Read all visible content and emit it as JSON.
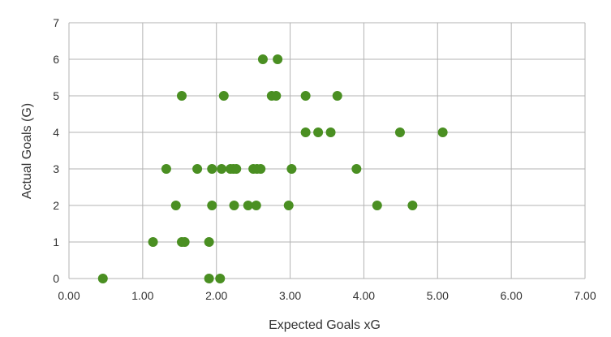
{
  "chart_data": {
    "type": "scatter",
    "title": "",
    "xlabel": "Expected Goals xG",
    "ylabel": "Actual Goals (G)",
    "xlim": [
      0,
      7
    ],
    "ylim": [
      0,
      7
    ],
    "x_ticks": [
      "0.00",
      "1.00",
      "2.00",
      "3.00",
      "4.00",
      "5.00",
      "6.00",
      "7.00"
    ],
    "y_ticks": [
      "0",
      "1",
      "2",
      "3",
      "4",
      "5",
      "6",
      "7"
    ],
    "grid": true,
    "legend": "none",
    "marker_color": "#4a8f22",
    "grid_color": "#b3b3b3",
    "series": [
      {
        "points": [
          [
            0.46,
            0
          ],
          [
            1.9,
            0
          ],
          [
            2.05,
            0
          ],
          [
            1.14,
            1
          ],
          [
            1.53,
            1
          ],
          [
            1.57,
            1
          ],
          [
            1.9,
            1
          ],
          [
            1.45,
            2
          ],
          [
            1.94,
            2
          ],
          [
            2.24,
            2
          ],
          [
            2.43,
            2
          ],
          [
            2.54,
            2
          ],
          [
            2.98,
            2
          ],
          [
            4.18,
            2
          ],
          [
            4.66,
            2
          ],
          [
            1.32,
            3
          ],
          [
            1.74,
            3
          ],
          [
            1.94,
            3
          ],
          [
            2.07,
            3
          ],
          [
            2.19,
            3
          ],
          [
            2.23,
            3
          ],
          [
            2.27,
            3
          ],
          [
            2.5,
            3
          ],
          [
            2.55,
            3
          ],
          [
            2.6,
            3
          ],
          [
            3.02,
            3
          ],
          [
            3.9,
            3
          ],
          [
            3.21,
            4
          ],
          [
            3.38,
            4
          ],
          [
            3.55,
            4
          ],
          [
            4.49,
            4
          ],
          [
            5.07,
            4
          ],
          [
            1.53,
            5
          ],
          [
            2.1,
            5
          ],
          [
            2.75,
            5
          ],
          [
            2.81,
            5
          ],
          [
            3.21,
            5
          ],
          [
            3.64,
            5
          ],
          [
            2.63,
            6
          ],
          [
            2.83,
            6
          ]
        ]
      }
    ]
  }
}
